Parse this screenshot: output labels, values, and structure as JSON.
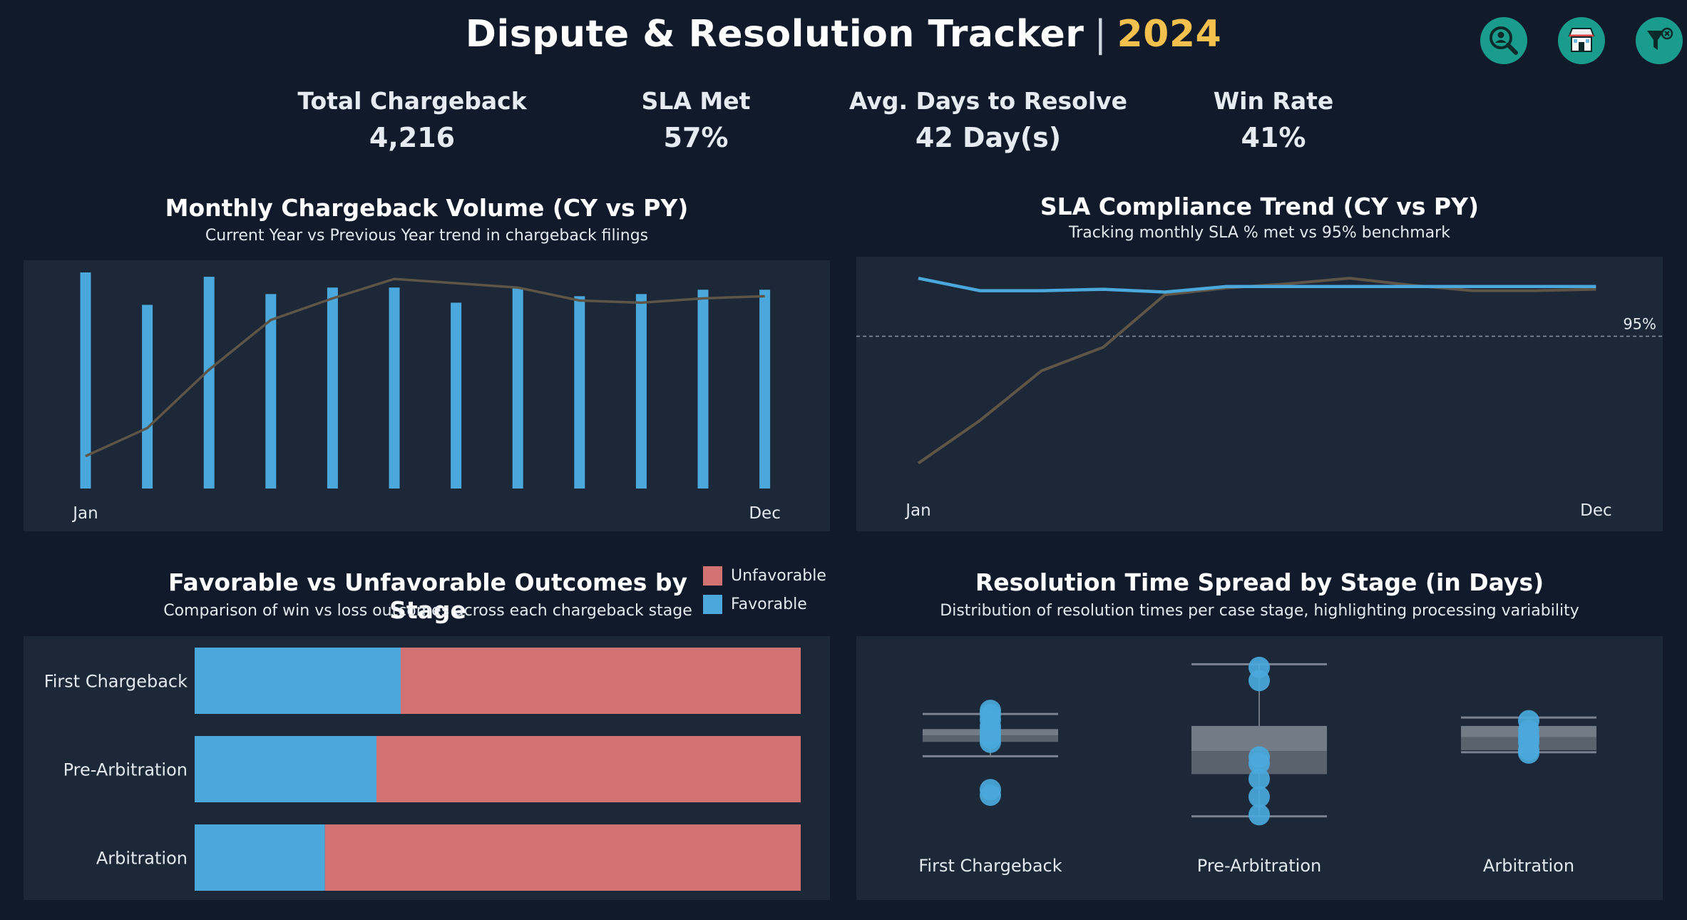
{
  "header": {
    "title": "Dispute & Resolution Tracker",
    "separator": "|",
    "year": "2024",
    "icons": [
      "search-person-icon",
      "storefront-icon",
      "clear-filter-icon"
    ]
  },
  "kpis": [
    {
      "label": "Total Chargeback",
      "value": "4,216"
    },
    {
      "label": "SLA Met",
      "value": "57%"
    },
    {
      "label": "Avg. Days to Resolve",
      "value": "42 Day(s)"
    },
    {
      "label": "Win Rate",
      "value": "41%"
    }
  ],
  "colors": {
    "cy": "#4aa8dc",
    "py": "#5e5546",
    "unfavorable": "#d27272",
    "favorable": "#4aa8dc",
    "panel": "#1c2738",
    "accent": "#f4c04e"
  },
  "chart_data": [
    {
      "type": "bar",
      "title": "Monthly Chargeback Volume (CY vs PY)",
      "subtitle": "Current Year vs Previous Year trend in chargeback filings",
      "x_tick_labels": [
        "Jan",
        "Dec"
      ],
      "categories": [
        "1",
        "2",
        "3",
        "4",
        "5",
        "6",
        "7",
        "8",
        "9",
        "10",
        "11",
        "12"
      ],
      "ylim": [
        0,
        100
      ],
      "series": [
        {
          "values": [
            100,
            85,
            98,
            90,
            93,
            93,
            86,
            93,
            89,
            90,
            92,
            92
          ]
        },
        {
          "type": "line",
          "values": [
            15,
            28,
            55,
            78,
            88,
            97,
            95,
            93,
            87,
            86,
            88,
            89
          ]
        }
      ]
    },
    {
      "type": "line",
      "title": "SLA Compliance Trend (CY vs PY)",
      "subtitle": "Tracking monthly SLA % met vs 95% benchmark",
      "x_tick_labels": [
        "Jan",
        "Dec"
      ],
      "categories": [
        "1",
        "2",
        "3",
        "4",
        "5",
        "6",
        "7",
        "8",
        "9",
        "10",
        "11",
        "12"
      ],
      "ylim": [
        85,
        100.5
      ],
      "reference_line": {
        "value": 95,
        "label": "95%"
      },
      "series": [
        {
          "values": [
            99.2,
            98.3,
            98.3,
            98.4,
            98.2,
            98.6,
            98.6,
            98.6,
            98.6,
            98.6,
            98.6,
            98.6
          ]
        },
        {
          "values": [
            85.8,
            88.9,
            92.5,
            94.2,
            98.0,
            98.5,
            98.8,
            99.2,
            98.7,
            98.3,
            98.3,
            98.4
          ]
        }
      ]
    },
    {
      "type": "bar",
      "orientation": "horizontal-stacked-percent",
      "title": "Favorable vs Unfavorable Outcomes by Stage",
      "subtitle": "Comparison of win vs loss outcomes across each chargeback stage",
      "legend": [
        "Unfavorable",
        "Favorable"
      ],
      "legend_position": "top-right",
      "categories": [
        "First Chargeback",
        "Pre-Arbitration",
        "Arbitration"
      ],
      "series": [
        {
          "name": "Favorable",
          "values": [
            34,
            30,
            21.5
          ]
        },
        {
          "name": "Unfavorable",
          "values": [
            66,
            70,
            78.5
          ]
        }
      ]
    },
    {
      "type": "box",
      "title": "Resolution Time Spread by Stage (in Days)",
      "subtitle": "Distribution of resolution times per case stage, highlighting processing variability",
      "categories": [
        "First Chargeback",
        "Pre-Arbitration",
        "Arbitration"
      ],
      "ylim": [
        20,
        68
      ],
      "boxes": [
        {
          "whisker_low": 40,
          "q1": 43.6,
          "median": 45.2,
          "q3": 46.8,
          "whisker_high": 50.6,
          "points": [
            51.5,
            50.5,
            49.2,
            47.5,
            46.5,
            45.5,
            44.5,
            43.5,
            31.6,
            30.2
          ]
        },
        {
          "whisker_low": 24.9,
          "q1": 35.5,
          "median": 41.3,
          "q3": 47.6,
          "whisker_high": 63.1,
          "points": [
            62.3,
            59.0,
            39.8,
            38.2,
            34.3,
            29.8,
            25.3
          ]
        },
        {
          "whisker_low": 41.0,
          "q1": 41.5,
          "median": 44.8,
          "q3": 47.6,
          "whisker_high": 49.7,
          "points": [
            48.9,
            46.5,
            44.8,
            43.5,
            41.6,
            40.8
          ]
        }
      ]
    }
  ]
}
